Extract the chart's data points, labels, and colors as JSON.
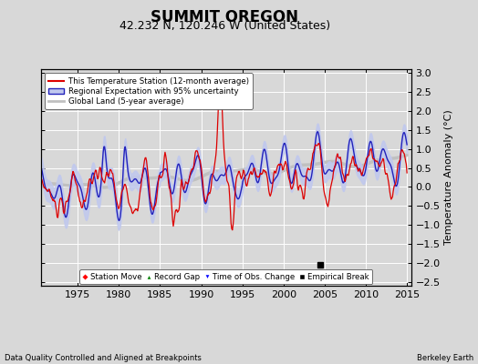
{
  "title": "SUMMIT OREGON",
  "subtitle": "42.232 N, 120.246 W (United States)",
  "ylabel": "Temperature Anomaly (°C)",
  "xlabel_left": "Data Quality Controlled and Aligned at Breakpoints",
  "xlabel_right": "Berkeley Earth",
  "ylim": [
    -2.6,
    3.1
  ],
  "yticks": [
    -2.5,
    -2,
    -1.5,
    -1,
    -0.5,
    0,
    0.5,
    1,
    1.5,
    2,
    2.5,
    3
  ],
  "xlim": [
    1970.5,
    2015.5
  ],
  "xticks": [
    1975,
    1980,
    1985,
    1990,
    1995,
    2000,
    2005,
    2010,
    2015
  ],
  "bg_color": "#d8d8d8",
  "plot_bg_color": "#d8d8d8",
  "grid_color": "#ffffff",
  "station_color": "#dd0000",
  "regional_color": "#2222bb",
  "regional_fill_color": "#c0c8ee",
  "global_color": "#c0c0c0",
  "legend1": [
    "This Temperature Station (12-month average)",
    "Regional Expectation with 95% uncertainty",
    "Global Land (5-year average)"
  ],
  "legend2_labels": [
    "Station Move",
    "Record Gap",
    "Time of Obs. Change",
    "Empirical Break"
  ],
  "empirical_break_year": 2004.5,
  "title_fontsize": 12,
  "subtitle_fontsize": 9
}
